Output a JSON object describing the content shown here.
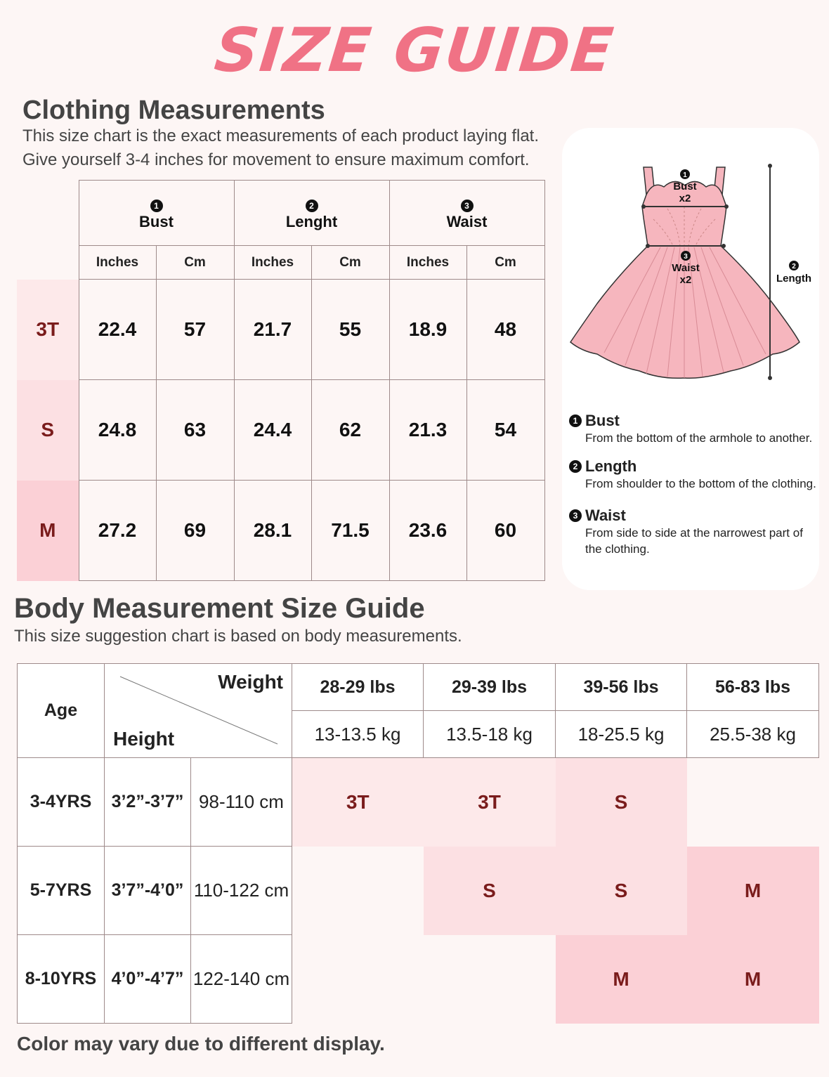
{
  "title": "SIZE GUIDE",
  "clothing": {
    "heading": "Clothing Measurements",
    "line1": "This size chart is the exact measurements of each product laying flat.",
    "line2": "Give yourself 3-4 inches for movement to ensure maximum comfort.",
    "groups": [
      {
        "num": "1",
        "label": "Bust"
      },
      {
        "num": "2",
        "label": "Lenght"
      },
      {
        "num": "3",
        "label": "Waist"
      }
    ],
    "units": [
      "Inches",
      "Cm",
      "Inches",
      "Cm",
      "Inches",
      "Cm"
    ],
    "rows": [
      {
        "size": "3T",
        "values": [
          "22.4",
          "57",
          "21.7",
          "55",
          "18.9",
          "48"
        ]
      },
      {
        "size": "S",
        "values": [
          "24.8",
          "63",
          "24.4",
          "62",
          "21.3",
          "54"
        ]
      },
      {
        "size": "M",
        "values": [
          "27.2",
          "69",
          "28.1",
          "71.5",
          "23.6",
          "60"
        ]
      }
    ],
    "size_colors": [
      "#fde9ea",
      "#fce0e3",
      "#fbd0d6"
    ]
  },
  "diagram": {
    "bust": "Bust",
    "bust_x": "x2",
    "waist": "Waist",
    "waist_x": "x2",
    "length": "Length",
    "n1": "1",
    "n2": "2",
    "n3": "3",
    "dress_color": "#f6b6be"
  },
  "legend": [
    {
      "num": "1",
      "title": "Bust",
      "desc": "From the bottom of the armhole to another."
    },
    {
      "num": "2",
      "title": "Length",
      "desc": "From shoulder to the bottom of the clothing."
    },
    {
      "num": "3",
      "title": "Waist",
      "desc": "From side to side at the narrowest part of the clothing."
    }
  ],
  "body": {
    "heading": "Body Measurement Size Guide",
    "subtitle": "This size suggestion chart is based on body measurements.",
    "age_label": "Age",
    "weight_label": "Weight",
    "height_label": "Height",
    "lbs": [
      "28-29 lbs",
      "29-39 lbs",
      "39-56 lbs",
      "56-83 lbs"
    ],
    "kg": [
      "13-13.5 kg",
      "13.5-18 kg",
      "18-25.5 kg",
      "25.5-38 kg"
    ],
    "rows": [
      {
        "age": "3-4YRS",
        "ft": "3’2”-3’7”",
        "cm": "98-110 cm",
        "sizes": [
          "3T",
          "3T",
          "S",
          ""
        ]
      },
      {
        "age": "5-7YRS",
        "ft": "3’7”-4’0”",
        "cm": "110-122 cm",
        "sizes": [
          "",
          "S",
          "S",
          "M"
        ]
      },
      {
        "age": "8-10YRS",
        "ft": "4’0”-4’7”",
        "cm": "122-140 cm",
        "sizes": [
          "",
          "",
          "M",
          "M"
        ]
      }
    ],
    "cell_colors": {
      "3T": "#fde9ea",
      "S": "#fce0e3",
      "M": "#fbd0d6"
    }
  },
  "footer": "Color may vary due to different display."
}
